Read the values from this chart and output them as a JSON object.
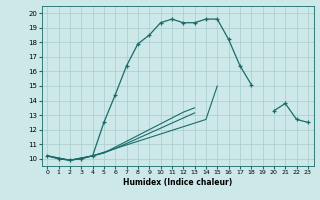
{
  "xlabel": "Humidex (Indice chaleur)",
  "background_color": "#cce8e8",
  "grid_color": "#aacccc",
  "line_color": "#1a6b6b",
  "xlim": [
    -0.5,
    23.5
  ],
  "ylim": [
    9.5,
    20.5
  ],
  "xticks": [
    0,
    1,
    2,
    3,
    4,
    5,
    6,
    7,
    8,
    9,
    10,
    11,
    12,
    13,
    14,
    15,
    16,
    17,
    18,
    19,
    20,
    21,
    22,
    23
  ],
  "yticks": [
    10,
    11,
    12,
    13,
    14,
    15,
    16,
    17,
    18,
    19,
    20
  ],
  "line1_x": [
    0,
    1,
    2,
    3,
    4,
    5,
    6,
    7,
    8,
    9,
    10,
    11,
    12,
    13,
    14,
    15,
    16,
    17,
    18
  ],
  "line1_y": [
    10.2,
    10.0,
    9.9,
    10.0,
    10.2,
    12.5,
    14.4,
    16.4,
    17.9,
    18.5,
    19.35,
    19.6,
    19.35,
    19.35,
    19.6,
    19.6,
    18.2,
    16.4,
    15.1
  ],
  "line2_x": [
    0,
    1,
    2,
    3,
    4,
    5,
    6,
    7,
    8,
    9,
    10,
    11,
    12,
    13,
    14,
    15
  ],
  "line2_y": [
    10.2,
    10.0,
    9.9,
    10.0,
    10.2,
    10.45,
    10.7,
    10.95,
    11.2,
    11.45,
    11.7,
    11.95,
    12.2,
    12.45,
    12.7,
    15.0
  ],
  "line3_x": [
    0,
    2,
    4,
    5,
    6,
    7,
    8,
    9,
    10,
    11,
    12,
    13
  ],
  "line3_y": [
    10.2,
    9.9,
    10.2,
    10.4,
    10.7,
    11.05,
    11.4,
    11.75,
    12.1,
    12.45,
    12.8,
    13.15
  ],
  "line4_x": [
    0,
    2,
    4,
    5,
    6,
    7,
    8,
    9,
    10,
    11,
    12,
    13,
    20,
    21,
    22,
    23
  ],
  "line4_y": [
    10.2,
    9.9,
    10.2,
    10.4,
    10.8,
    11.2,
    11.6,
    12.0,
    12.4,
    12.8,
    13.2,
    13.5,
    13.3,
    13.8,
    12.7,
    12.5
  ]
}
